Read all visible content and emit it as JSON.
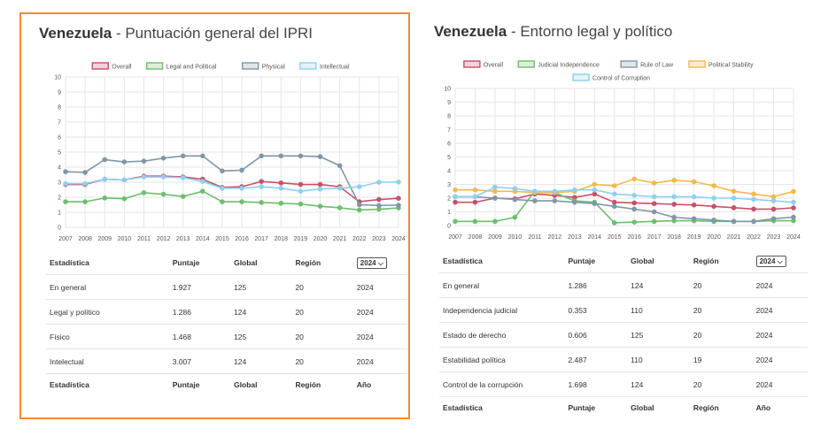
{
  "panels": [
    {
      "country": "Venezuela",
      "separator": " - ",
      "subtitle": "Puntuación general del IPRI",
      "chart_data": {
        "type": "line",
        "x": [
          "2007",
          "2008",
          "2009",
          "2010",
          "2011",
          "2012",
          "2013",
          "2014",
          "2015",
          "2016",
          "2017",
          "2018",
          "2019",
          "2020",
          "2021",
          "2022",
          "2023",
          "2024"
        ],
        "ylim": [
          0,
          10
        ],
        "yticks": [
          0,
          1,
          2,
          3,
          4,
          5,
          6,
          7,
          8,
          9,
          10
        ],
        "grid": true,
        "legend_placement": "top",
        "series": [
          {
            "name": "Overall",
            "color": "#c8506a",
            "values": [
              2.85,
              2.85,
              3.2,
              3.15,
              3.4,
              3.4,
              3.35,
              3.2,
              2.65,
              2.7,
              3.05,
              2.95,
              2.85,
              2.85,
              2.7,
              1.7,
              1.85,
              1.93
            ]
          },
          {
            "name": "Legal and Political",
            "color": "#6dbf6d",
            "values": [
              1.7,
              1.7,
              1.95,
              1.9,
              2.3,
              2.2,
              2.05,
              2.4,
              1.7,
              1.7,
              1.65,
              1.6,
              1.55,
              1.4,
              1.3,
              1.15,
              1.2,
              1.29
            ]
          },
          {
            "name": "Physical",
            "color": "#7f97a8",
            "values": [
              3.7,
              3.65,
              4.5,
              4.35,
              4.4,
              4.6,
              4.75,
              4.75,
              3.75,
              3.8,
              4.75,
              4.75,
              4.75,
              4.7,
              4.1,
              1.5,
              1.45,
              1.47
            ]
          },
          {
            "name": "Intellectual",
            "color": "#8ed0ee",
            "values": [
              2.9,
              2.9,
              3.2,
              3.15,
              3.35,
              3.35,
              3.3,
              3.05,
              2.6,
              2.6,
              2.7,
              2.6,
              2.4,
              2.55,
              2.6,
              2.7,
              3.0,
              3.01
            ]
          }
        ]
      },
      "table": {
        "headers": [
          "Estadística",
          "Puntaje",
          "Global",
          "Región",
          "2024"
        ],
        "rows": [
          [
            "En general",
            "1.927",
            "125",
            "20",
            "2024"
          ],
          [
            "Legal y político",
            "1.286",
            "124",
            "20",
            "2024"
          ],
          [
            "Físico",
            "1.468",
            "125",
            "20",
            "2024"
          ],
          [
            "Intelectual",
            "3.007",
            "124",
            "20",
            "2024"
          ]
        ],
        "footer": [
          "Estadística",
          "Puntaje",
          "Global",
          "Región",
          "Año"
        ]
      }
    },
    {
      "country": "Venezuela",
      "separator": " - ",
      "subtitle": "Entorno legal y político",
      "chart_data": {
        "type": "line",
        "x": [
          "2007",
          "2008",
          "2009",
          "2010",
          "2011",
          "2012",
          "2013",
          "2014",
          "2015",
          "2016",
          "2017",
          "2018",
          "2019",
          "2020",
          "2021",
          "2022",
          "2023",
          "2024"
        ],
        "ylim": [
          0,
          10
        ],
        "yticks": [
          0,
          1,
          2,
          3,
          4,
          5,
          6,
          7,
          8,
          9,
          10
        ],
        "grid": true,
        "legend_placement": "top",
        "series": [
          {
            "name": "Overall",
            "color": "#c8506a",
            "values": [
              1.7,
              1.7,
              2.0,
              1.95,
              2.3,
              2.2,
              2.05,
              2.3,
              1.7,
              1.65,
              1.6,
              1.55,
              1.5,
              1.4,
              1.3,
              1.2,
              1.2,
              1.29
            ]
          },
          {
            "name": "Judicial Independence",
            "color": "#6dbf6d",
            "values": [
              0.3,
              0.3,
              0.3,
              0.6,
              2.5,
              2.4,
              1.8,
              1.7,
              0.2,
              0.25,
              0.3,
              0.35,
              0.35,
              0.3,
              0.3,
              0.3,
              0.35,
              0.35
            ]
          },
          {
            "name": "Rule of Law",
            "color": "#7f97a8",
            "values": [
              2.1,
              2.1,
              2.0,
              1.9,
              1.8,
              1.8,
              1.7,
              1.6,
              1.4,
              1.2,
              1.0,
              0.6,
              0.5,
              0.4,
              0.3,
              0.3,
              0.5,
              0.61
            ]
          },
          {
            "name": "Political Stability",
            "color": "#f2b94d",
            "values": [
              2.6,
              2.6,
              2.5,
              2.5,
              2.4,
              2.4,
              2.5,
              3.0,
              2.9,
              3.4,
              3.1,
              3.3,
              3.2,
              2.9,
              2.5,
              2.3,
              2.1,
              2.49
            ]
          },
          {
            "name": "Control of Corruption",
            "color": "#8ed0ee",
            "values": [
              2.1,
              2.1,
              2.8,
              2.7,
              2.5,
              2.5,
              2.6,
              2.6,
              2.3,
              2.2,
              2.1,
              2.1,
              2.1,
              2.0,
              2.0,
              1.9,
              1.8,
              1.7
            ]
          }
        ]
      },
      "table": {
        "headers": [
          "Estadística",
          "Puntaje",
          "Global",
          "Región",
          "2024"
        ],
        "rows": [
          [
            "En general",
            "1.286",
            "124",
            "20",
            "2024"
          ],
          [
            "Independencia judicial",
            "0.353",
            "110",
            "20",
            "2024"
          ],
          [
            "Estado de derecho",
            "0.606",
            "125",
            "20",
            "2024"
          ],
          [
            "Estabilidad política",
            "2.487",
            "110",
            "19",
            "2024"
          ],
          [
            "Control de la corrupción",
            "1.698",
            "124",
            "20",
            "2024"
          ]
        ],
        "footer": [
          "Estadística",
          "Puntaje",
          "Global",
          "Región",
          "Año"
        ]
      }
    }
  ]
}
